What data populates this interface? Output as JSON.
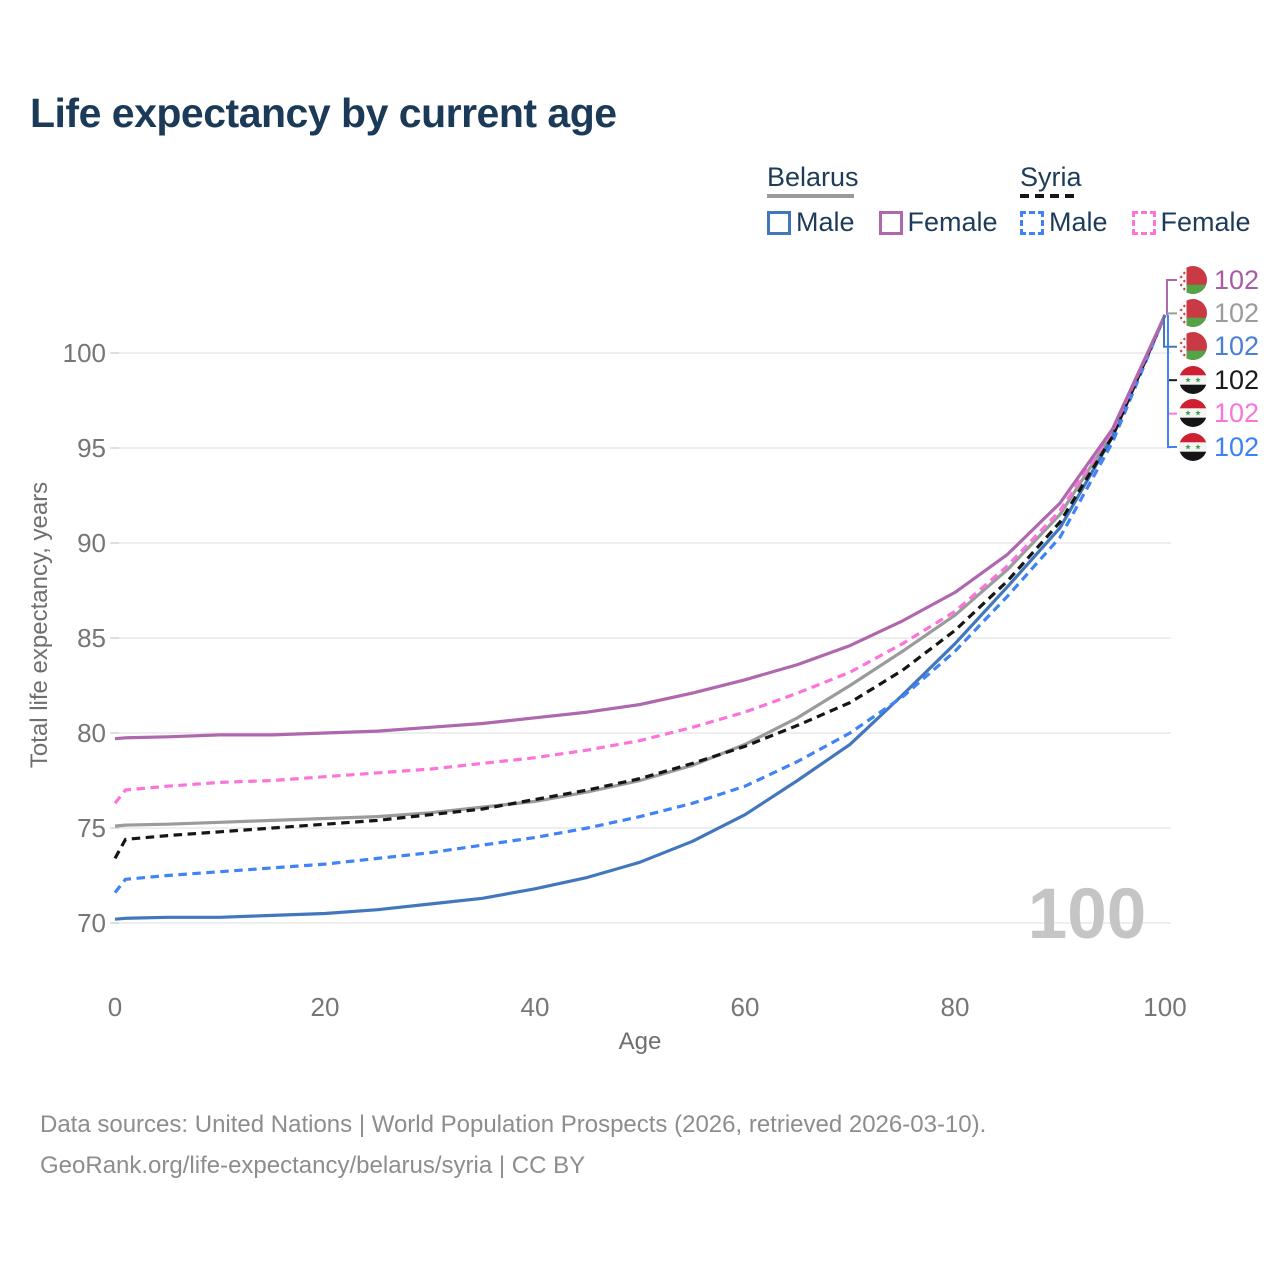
{
  "header": {
    "title": "Life expectancy by current age"
  },
  "legend": {
    "groups": [
      {
        "country": "Belarus",
        "total_line": {
          "style": "solid",
          "color": "#9a9a9a"
        },
        "items": [
          {
            "label": "Male",
            "color": "#4377bd",
            "dashed": false
          },
          {
            "label": "Female",
            "color": "#af68ad",
            "dashed": false
          }
        ]
      },
      {
        "country": "Syria",
        "total_line": {
          "style": "dashed",
          "color": "#161616"
        },
        "items": [
          {
            "label": "Male",
            "color": "#3f83f5",
            "dashed": true
          },
          {
            "label": "Female",
            "color": "#fb74da",
            "dashed": true
          }
        ]
      }
    ]
  },
  "chart_data": {
    "type": "line",
    "title": "Life expectancy by current age",
    "xlabel": "Age",
    "ylabel": "Total life expectancy, years",
    "xlim": [
      0,
      100
    ],
    "ylim": [
      68.5,
      103.5
    ],
    "xticks": [
      0,
      20,
      40,
      60,
      80,
      100
    ],
    "yticks": [
      70,
      75,
      80,
      85,
      90,
      95,
      100
    ],
    "grid": "horizontal",
    "legend_position": "top-right",
    "x": [
      0,
      1,
      5,
      10,
      15,
      20,
      25,
      30,
      35,
      40,
      45,
      50,
      55,
      60,
      65,
      70,
      75,
      80,
      85,
      90,
      95,
      100
    ],
    "series": [
      {
        "name": "Belarus Total",
        "country": "Belarus",
        "sex": "Both",
        "color": "#9b9b9b",
        "dash": false,
        "values": [
          75.1,
          75.15,
          75.2,
          75.3,
          75.4,
          75.5,
          75.6,
          75.8,
          76.1,
          76.4,
          76.9,
          77.5,
          78.3,
          79.4,
          80.8,
          82.5,
          84.3,
          86.2,
          88.6,
          91.5,
          95.8,
          102
        ]
      },
      {
        "name": "Belarus Male",
        "country": "Belarus",
        "sex": "Male",
        "color": "#4377bd",
        "dash": false,
        "values": [
          70.2,
          70.25,
          70.3,
          70.3,
          70.4,
          70.5,
          70.7,
          71.0,
          71.3,
          71.8,
          72.4,
          73.2,
          74.3,
          75.7,
          77.5,
          79.4,
          82.0,
          84.7,
          87.7,
          90.8,
          95.6,
          102
        ]
      },
      {
        "name": "Syria Male",
        "country": "Syria",
        "sex": "Male",
        "color": "#3f83f5",
        "dash": true,
        "values": [
          71.6,
          72.3,
          72.5,
          72.7,
          72.9,
          73.1,
          73.4,
          73.7,
          74.1,
          74.5,
          75.0,
          75.6,
          76.3,
          77.2,
          78.5,
          80.0,
          81.9,
          84.3,
          87.2,
          90.3,
          95.3,
          102
        ]
      },
      {
        "name": "Syria Total",
        "country": "Syria",
        "sex": "Both",
        "color": "#161616",
        "dash": true,
        "values": [
          73.4,
          74.4,
          74.6,
          74.8,
          75.0,
          75.2,
          75.4,
          75.7,
          76.0,
          76.5,
          77.0,
          77.6,
          78.4,
          79.3,
          80.4,
          81.6,
          83.3,
          85.4,
          88.0,
          91.1,
          95.6,
          102
        ]
      },
      {
        "name": "Syria Female",
        "country": "Syria",
        "sex": "Female",
        "color": "#fb74da",
        "dash": true,
        "values": [
          76.3,
          77.0,
          77.2,
          77.4,
          77.5,
          77.7,
          77.9,
          78.1,
          78.4,
          78.7,
          79.1,
          79.6,
          80.3,
          81.1,
          82.1,
          83.2,
          84.7,
          86.4,
          88.8,
          91.7,
          95.9,
          102
        ]
      },
      {
        "name": "Belarus Female",
        "country": "Belarus",
        "sex": "Female",
        "color": "#af68ad",
        "dash": false,
        "values": [
          79.7,
          79.75,
          79.8,
          79.9,
          79.9,
          80.0,
          80.1,
          80.3,
          80.5,
          80.8,
          81.1,
          81.5,
          82.1,
          82.8,
          83.6,
          84.6,
          85.9,
          87.4,
          89.4,
          92.1,
          96.0,
          102
        ]
      }
    ],
    "end_labels": {
      "age": 100,
      "value": 102
    }
  },
  "right_labels": [
    {
      "flag": "belarus",
      "series": "Belarus Female",
      "value": "102",
      "color": "#a85ca6"
    },
    {
      "flag": "belarus",
      "series": "Belarus Total",
      "value": "102",
      "color": "#9b9b9b"
    },
    {
      "flag": "belarus",
      "series": "Belarus Male",
      "value": "102",
      "color": "#4c7fd1"
    },
    {
      "flag": "syria",
      "series": "Syria Total",
      "value": "102",
      "color": "#1a1a1a"
    },
    {
      "flag": "syria",
      "series": "Syria Female",
      "value": "102",
      "color": "#fb74da"
    },
    {
      "flag": "syria",
      "series": "Syria Male",
      "value": "102",
      "color": "#3b82f6"
    }
  ],
  "watermark": {
    "value": "100"
  },
  "footer": {
    "line1": "Data sources: United Nations | World Population Prospects (2026, retrieved 2026-03-10).",
    "line2": "GeoRank.org/life-expectancy/belarus/syria | CC BY"
  }
}
